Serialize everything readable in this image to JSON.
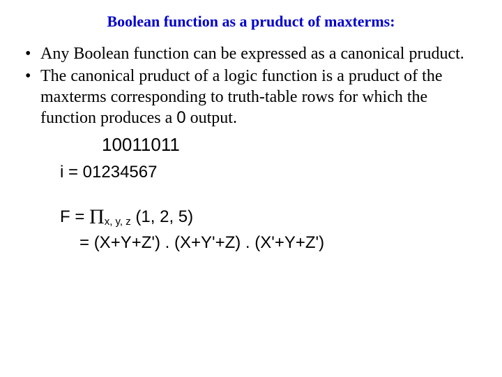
{
  "title": {
    "text": "Boolean function as a pruduct of maxterms:",
    "color": "#0000cc"
  },
  "bullets": [
    "Any Boolean function can be expressed as a canonical pruduct.",
    "The canonical pruduct of a logic function is a pruduct of the maxterms corresponding to truth-table rows for which the function produces a 0 output."
  ],
  "bitstring": "10011011",
  "index_line": "i = 01234567",
  "formula": {
    "lhs": "F = ",
    "pi": "Π",
    "subscript": "x, y, z",
    "args": " (1, 2, 5)",
    "expansion_prefix": "= ",
    "expansion": "(X+Y+Z') . (X+Y'+Z) . (X'+Y+Z')"
  },
  "colors": {
    "title": "#0000cc",
    "body": "#000000",
    "background": "#ffffff"
  }
}
